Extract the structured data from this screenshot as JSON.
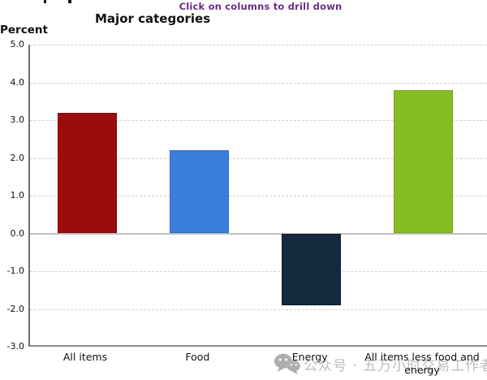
{
  "page": {
    "drill_hint": "Click on columns to drill down",
    "title": "Major categories",
    "y_axis_unit_label": "Percent"
  },
  "chart_data": {
    "type": "bar",
    "title": "Major categories",
    "ylabel": "Percent",
    "categories": [
      "All items",
      "Food",
      "Energy",
      "All items less food and energy"
    ],
    "values": [
      3.2,
      2.2,
      -1.9,
      3.8
    ],
    "bar_colors": [
      "#9b0c0c",
      "#3a80db",
      "#15293e",
      "#86bd24"
    ],
    "bar_border_colors": [
      "#850909",
      "#2e6cc0",
      "#0d1b2a",
      "#74a81c"
    ],
    "ylim": [
      -3.0,
      5.0
    ],
    "yticks": [
      5.0,
      4.0,
      3.0,
      2.0,
      1.0,
      0.0,
      -1.0,
      -2.0,
      -3.0
    ],
    "ytick_labels": [
      "5.0",
      "4.0",
      "3.0",
      "2.0",
      "1.0",
      "0.0",
      "-1.0",
      "-2.0",
      "-3.0"
    ],
    "grid": "horizontal dashed, solid zero line",
    "legend": "none",
    "interaction_hint": "Click on columns to drill down"
  },
  "watermark": {
    "icon": "wechat-icon",
    "text": "公众号 · 五万小时交易工作者",
    "color": "#bdbdbd"
  },
  "colors": {
    "hint_text": "#6a2c87",
    "axis": "#8c8c8c",
    "gridline": "#d4d4d4",
    "zero_line": "#c0c0c0",
    "label_text": "#111111",
    "background": "#ffffff"
  }
}
